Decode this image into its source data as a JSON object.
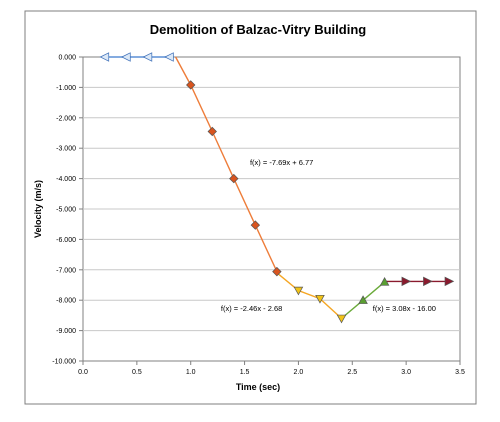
{
  "chart_data": {
    "type": "line",
    "title": "Demolition of Balzac-Vitry Building",
    "xlabel": "Time (sec)",
    "ylabel": "Velocity (m/s)",
    "xlim": [
      0,
      3.5
    ],
    "ylim": [
      -10,
      0
    ],
    "x_ticks": [
      "0.0",
      "0.5",
      "1.0",
      "1.5",
      "2.0",
      "2.5",
      "3.0",
      "3.5"
    ],
    "y_ticks": [
      "0.000",
      "-1.000",
      "-2.000",
      "-3.000",
      "-4.000",
      "-5.000",
      "-6.000",
      "-7.000",
      "-8.000",
      "-9.000",
      "-10.000"
    ],
    "grid": "horizontal",
    "legend": "none",
    "series": [
      {
        "marker": "triangle-left",
        "color": "#5b8fd6",
        "line_color": "#5b8fd6",
        "points": [
          [
            0.2,
            0
          ],
          [
            0.4,
            0
          ],
          [
            0.6,
            0
          ],
          [
            0.8,
            0
          ]
        ]
      },
      {
        "marker": "diamond",
        "color": "#d9541e",
        "line_color": "#ee7d3a",
        "points": [
          [
            0.86,
            0
          ],
          [
            1.0,
            -0.92
          ],
          [
            1.2,
            -2.45
          ],
          [
            1.4,
            -4.0
          ],
          [
            1.6,
            -5.53
          ],
          [
            1.8,
            -7.06
          ]
        ]
      },
      {
        "marker": "triangle-down",
        "color": "#f2c417",
        "line_color": "#f5a623",
        "points": [
          [
            1.8,
            -7.1
          ],
          [
            2.0,
            -7.68
          ],
          [
            2.2,
            -7.95
          ],
          [
            2.4,
            -8.6
          ]
        ]
      },
      {
        "marker": "triangle-up",
        "color": "#5a9e32",
        "line_color": "#6aaa3a",
        "points": [
          [
            2.4,
            -8.6
          ],
          [
            2.6,
            -8.0
          ],
          [
            2.8,
            -7.4
          ]
        ]
      },
      {
        "marker": "triangle-right",
        "color": "#8b1a2e",
        "line_color": "#8b1a2e",
        "points": [
          [
            2.8,
            -7.38
          ],
          [
            3.0,
            -7.38
          ],
          [
            3.2,
            -7.38
          ],
          [
            3.4,
            -7.38
          ]
        ]
      }
    ],
    "annotations": [
      {
        "text": "f(x) = -7.69x + 6.77",
        "x": 1.55,
        "y": -3.55
      },
      {
        "text": "f(x) = -2.46x - 2.68",
        "x": 1.28,
        "y": -8.35
      },
      {
        "text": "f(x) = 3.08x - 16.00",
        "x": 2.69,
        "y": -8.35
      }
    ]
  }
}
